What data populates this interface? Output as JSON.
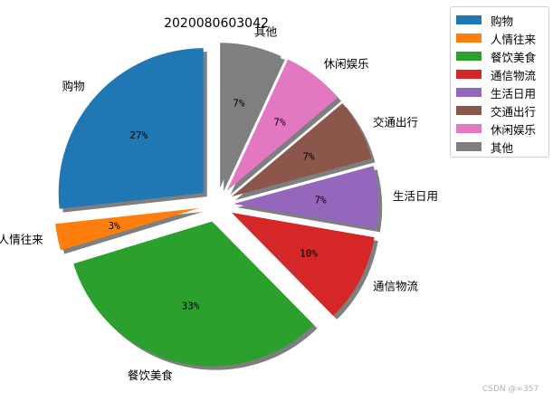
{
  "chart_data": {
    "type": "pie",
    "title": "2020080603042",
    "categories": [
      "购物",
      "人情往来",
      "餐饮美食",
      "通信物流",
      "生活日用",
      "交通出行",
      "休闲娱乐",
      "其他"
    ],
    "values": [
      27,
      3,
      33,
      10,
      7,
      7,
      7,
      7
    ],
    "value_labels": [
      "27%",
      "3%",
      "33%",
      "10%",
      "7%",
      "7%",
      "7%",
      "7%"
    ],
    "colors": [
      "#1f77b4",
      "#ff7f0e",
      "#2ca02c",
      "#d62728",
      "#9467bd",
      "#8c564b",
      "#e377c2",
      "#7f7f7f"
    ],
    "exploded": [
      true,
      true,
      true,
      true,
      true,
      true,
      true,
      true
    ],
    "shadow": true,
    "start_angle_deg": 90,
    "legend_placement": "upper-right"
  },
  "watermark": "CSDN @∞357"
}
